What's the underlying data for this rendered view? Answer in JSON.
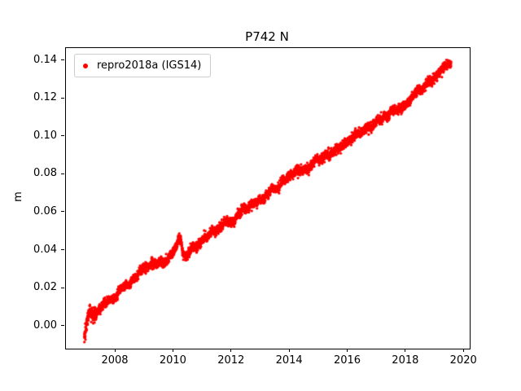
{
  "title": "P742 N",
  "ylabel": "m",
  "legend": {
    "label": "repro2018a (IGS14)",
    "marker_color": "#ff0000"
  },
  "chart_data": {
    "type": "scatter",
    "title": "P742 N",
    "xlabel": "",
    "ylabel": "m",
    "grid": false,
    "legend_position": "upper-left",
    "xlim": [
      2006.29,
      2020.19
    ],
    "ylim": [
      -0.0117,
      0.1467
    ],
    "xticks": [
      {
        "value": 2008,
        "label": "2008"
      },
      {
        "value": 2010,
        "label": "2010"
      },
      {
        "value": 2012,
        "label": "2012"
      },
      {
        "value": 2014,
        "label": "2014"
      },
      {
        "value": 2016,
        "label": "2016"
      },
      {
        "value": 2018,
        "label": "2018"
      },
      {
        "value": 2020,
        "label": "2020"
      }
    ],
    "yticks": [
      {
        "value": 0.0,
        "label": "0.00"
      },
      {
        "value": 0.02,
        "label": "0.02"
      },
      {
        "value": 0.04,
        "label": "0.04"
      },
      {
        "value": 0.06,
        "label": "0.06"
      },
      {
        "value": 0.08,
        "label": "0.08"
      },
      {
        "value": 0.1,
        "label": "0.10"
      },
      {
        "value": 0.12,
        "label": "0.12"
      },
      {
        "value": 0.14,
        "label": "0.14"
      }
    ],
    "series": [
      {
        "name": "repro2018a (IGS14)",
        "color": "#ff0000",
        "marker": "dot",
        "marker_radius_px": 1.6,
        "points_per_year": 360,
        "noise_std_m": 0.0011,
        "trend_anchors": [
          [
            2006.92,
            -0.0045
          ],
          [
            2006.97,
            -0.002
          ],
          [
            2007.02,
            0.004
          ],
          [
            2007.1,
            0.0075
          ],
          [
            2007.18,
            0.006
          ],
          [
            2007.3,
            0.0065
          ],
          [
            2007.45,
            0.009
          ],
          [
            2007.6,
            0.0105
          ],
          [
            2007.75,
            0.013
          ],
          [
            2007.9,
            0.0135
          ],
          [
            2008.0,
            0.015
          ],
          [
            2008.15,
            0.0185
          ],
          [
            2008.3,
            0.021
          ],
          [
            2008.45,
            0.0215
          ],
          [
            2008.6,
            0.024
          ],
          [
            2008.8,
            0.028
          ],
          [
            2009.0,
            0.031
          ],
          [
            2009.2,
            0.0325
          ],
          [
            2009.4,
            0.034
          ],
          [
            2009.6,
            0.034
          ],
          [
            2009.8,
            0.037
          ],
          [
            2010.0,
            0.041
          ],
          [
            2010.15,
            0.0455
          ],
          [
            2010.25,
            0.046
          ],
          [
            2010.33,
            0.037
          ],
          [
            2010.45,
            0.0365
          ],
          [
            2010.6,
            0.04
          ],
          [
            2010.8,
            0.043
          ],
          [
            2011.0,
            0.0465
          ],
          [
            2011.25,
            0.049
          ],
          [
            2011.5,
            0.0515
          ],
          [
            2011.75,
            0.0535
          ],
          [
            2012.0,
            0.0565
          ],
          [
            2012.25,
            0.059
          ],
          [
            2012.5,
            0.0615
          ],
          [
            2012.75,
            0.0645
          ],
          [
            2013.0,
            0.0675
          ],
          [
            2013.25,
            0.07
          ],
          [
            2013.5,
            0.0735
          ],
          [
            2013.75,
            0.076
          ],
          [
            2014.0,
            0.0785
          ],
          [
            2014.25,
            0.0815
          ],
          [
            2014.5,
            0.083
          ],
          [
            2014.75,
            0.0855
          ],
          [
            2015.0,
            0.088
          ],
          [
            2015.25,
            0.0905
          ],
          [
            2015.5,
            0.0925
          ],
          [
            2015.75,
            0.095
          ],
          [
            2016.0,
            0.098
          ],
          [
            2016.25,
            0.101
          ],
          [
            2016.5,
            0.1035
          ],
          [
            2016.75,
            0.1055
          ],
          [
            2017.0,
            0.108
          ],
          [
            2017.25,
            0.1105
          ],
          [
            2017.5,
            0.1125
          ],
          [
            2017.75,
            0.115
          ],
          [
            2018.0,
            0.118
          ],
          [
            2018.25,
            0.1215
          ],
          [
            2018.5,
            0.124
          ],
          [
            2018.75,
            0.128
          ],
          [
            2019.0,
            0.132
          ],
          [
            2019.2,
            0.135
          ],
          [
            2019.4,
            0.138
          ],
          [
            2019.55,
            0.1395
          ]
        ]
      }
    ]
  }
}
